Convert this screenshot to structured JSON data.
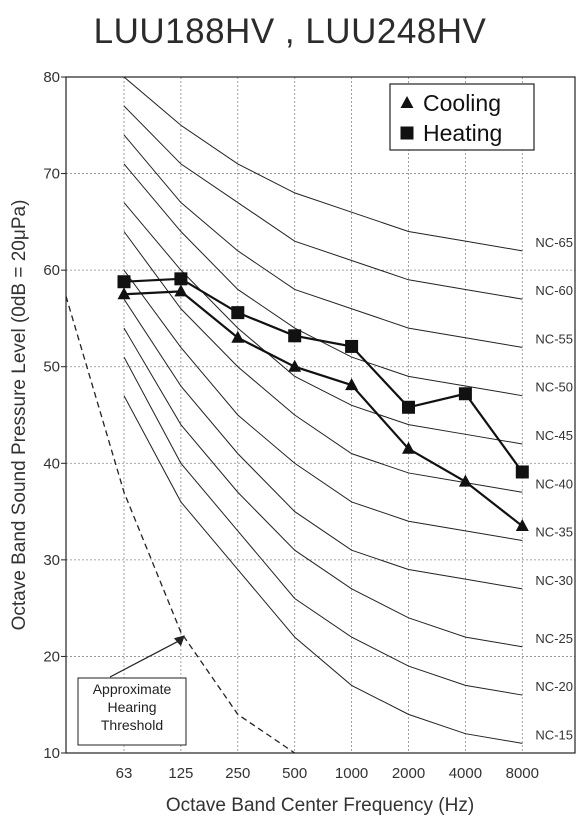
{
  "chart_data": {
    "type": "line",
    "title": "LUU188HV , LUU248HV",
    "xlabel": "Octave Band Center Frequency (Hz)",
    "ylabel": "Octave Band Sound Pressure Level (0dB = 20μPa)",
    "categories": [
      "63",
      "125",
      "250",
      "500",
      "1000",
      "2000",
      "4000",
      "8000"
    ],
    "ylim": [
      10,
      80
    ],
    "yticks": [
      10,
      20,
      30,
      40,
      50,
      60,
      70,
      80
    ],
    "grid": true,
    "legend": "top-right",
    "series": [
      {
        "name": "Cooling",
        "marker": "triangle",
        "values": [
          57.5,
          57.8,
          53.0,
          50.0,
          48.1,
          41.5,
          38.1,
          33.5
        ]
      },
      {
        "name": "Heating",
        "marker": "square",
        "values": [
          58.8,
          59.1,
          55.6,
          53.2,
          52.1,
          45.8,
          47.2,
          39.1
        ]
      }
    ],
    "nc_curves": [
      {
        "label": "NC-65",
        "values": [
          80,
          75,
          71,
          68,
          66,
          64,
          63,
          62
        ]
      },
      {
        "label": "NC-60",
        "values": [
          77,
          71,
          67,
          63,
          61,
          59,
          58,
          57
        ]
      },
      {
        "label": "NC-55",
        "values": [
          74,
          67,
          62,
          58,
          56,
          54,
          53,
          52
        ]
      },
      {
        "label": "NC-50",
        "values": [
          71,
          64,
          58,
          54,
          51,
          49,
          48,
          47
        ]
      },
      {
        "label": "NC-45",
        "values": [
          67,
          60,
          54,
          49,
          46,
          44,
          43,
          42
        ]
      },
      {
        "label": "NC-40",
        "values": [
          64,
          56,
          50,
          45,
          41,
          39,
          38,
          37
        ]
      },
      {
        "label": "NC-35",
        "values": [
          60,
          52,
          45,
          40,
          36,
          34,
          33,
          32
        ]
      },
      {
        "label": "NC-30",
        "values": [
          57,
          48,
          41,
          35,
          31,
          29,
          28,
          27
        ]
      },
      {
        "label": "NC-25",
        "values": [
          54,
          44,
          37,
          31,
          27,
          24,
          22,
          21
        ]
      },
      {
        "label": "NC-20",
        "values": [
          51,
          40,
          33,
          26,
          22,
          19,
          17,
          16
        ]
      },
      {
        "label": "NC-15",
        "values": [
          47,
          36,
          29,
          22,
          17,
          14,
          12,
          11
        ]
      }
    ],
    "hearing_threshold": [
      57.3,
      37,
      22.5,
      14,
      10
    ],
    "annotation": {
      "lines": [
        "Approximate",
        "Hearing",
        "Threshold"
      ],
      "arrow_to_category": "125"
    }
  }
}
